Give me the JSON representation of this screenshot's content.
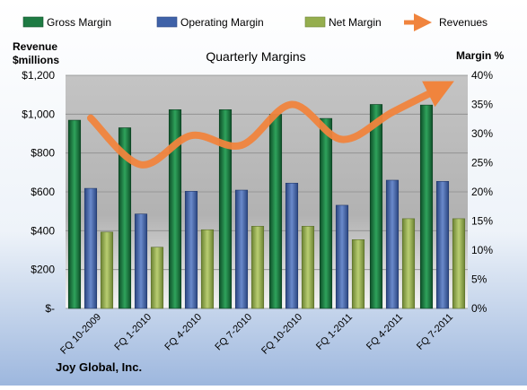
{
  "chart_data": {
    "type": "bar",
    "title": "Quarterly Margins",
    "footer": "Joy Global, Inc.",
    "left_axis": {
      "label_line1": "Revenue",
      "label_line2": "$millions",
      "min": 0,
      "max": 1200,
      "step": 200,
      "tick_labels": [
        "$-",
        "$200",
        "$400",
        "$600",
        "$800",
        "$1,000",
        "$1,200"
      ]
    },
    "right_axis": {
      "label": "Margin %",
      "min": 0,
      "max": 40,
      "step": 5,
      "tick_labels": [
        "0%",
        "5%",
        "10%",
        "15%",
        "20%",
        "25%",
        "30%",
        "35%",
        "40%"
      ]
    },
    "categories": [
      "FQ 10-2009",
      "FQ 1-2010",
      "FQ 4-2010",
      "FQ 7-2010",
      "FQ 10-2010",
      "FQ 1-2011",
      "FQ 4-2011",
      "FQ 7-2011"
    ],
    "series": [
      {
        "name": "Gross Margin",
        "kind": "bar",
        "axis": "right",
        "color": "#1E7B43",
        "values": [
          32.3,
          31.0,
          34.1,
          34.1,
          33.3,
          32.6,
          35.0,
          34.9
        ]
      },
      {
        "name": "Operating Margin",
        "kind": "bar",
        "axis": "right",
        "color": "#3F62A8",
        "values": [
          20.6,
          16.2,
          20.1,
          20.3,
          21.5,
          17.7,
          22.0,
          21.8
        ]
      },
      {
        "name": "Net Margin",
        "kind": "bar",
        "axis": "right",
        "color": "#95AE4E",
        "values": [
          13.1,
          10.5,
          13.5,
          14.1,
          14.1,
          11.8,
          15.4,
          15.4
        ]
      },
      {
        "name": "Revenues",
        "kind": "line",
        "axis": "left",
        "color": "#F0843D",
        "values": [
          980,
          740,
          890,
          840,
          1050,
          870,
          1010,
          1140
        ]
      }
    ],
    "legend_position": "top",
    "grid": true
  }
}
